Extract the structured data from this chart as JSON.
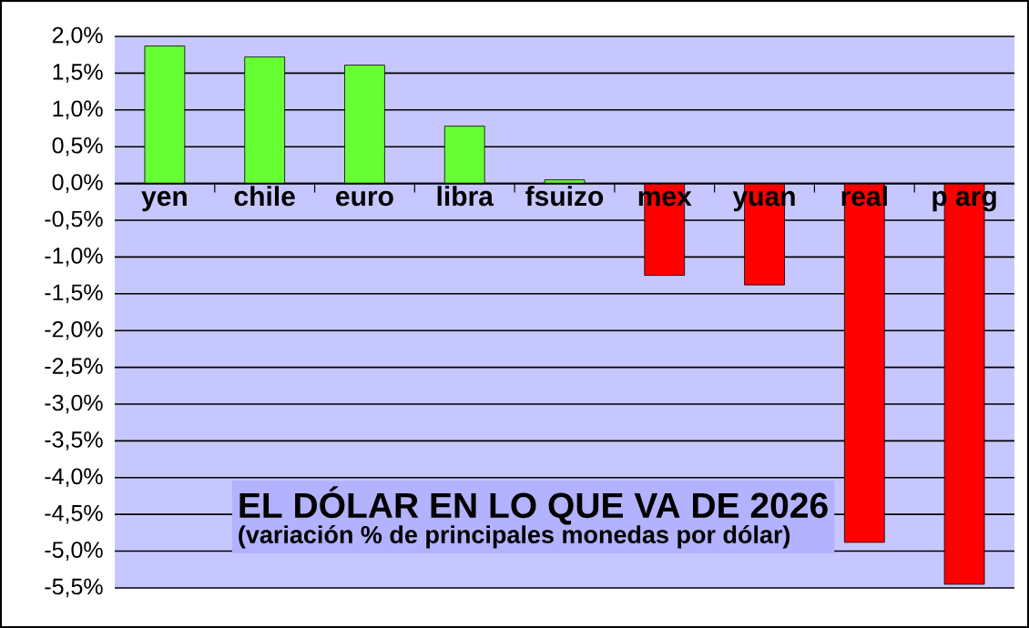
{
  "chart_data": {
    "type": "bar",
    "title": "EL DÓLAR EN LO QUE VA DE 2026",
    "subtitle": "(variación % de principales monedas por dólar)",
    "categories": [
      "yen",
      "chile",
      "euro",
      "libra",
      "fsuizo",
      "mex",
      "yuan",
      "real",
      "p arg"
    ],
    "values": [
      1.87,
      1.72,
      1.61,
      0.78,
      0.05,
      -1.25,
      -1.38,
      -4.88,
      -5.45
    ],
    "colors": [
      "#66ff33",
      "#66ff33",
      "#66ff33",
      "#66ff33",
      "#66ff33",
      "#ff0000",
      "#ff0000",
      "#ff0000",
      "#ff0000"
    ],
    "ylim": [
      -5.5,
      2.0
    ],
    "yticks": [
      {
        "value": -5.5,
        "label": "-5,5%"
      },
      {
        "value": -5.0,
        "label": "-5,0%"
      },
      {
        "value": -4.5,
        "label": "-4,5%"
      },
      {
        "value": -4.0,
        "label": "-4,0%"
      },
      {
        "value": -3.5,
        "label": "-3,5%"
      },
      {
        "value": -3.0,
        "label": "-3,0%"
      },
      {
        "value": -2.5,
        "label": "-2,5%"
      },
      {
        "value": -2.0,
        "label": "-2,0%"
      },
      {
        "value": -1.5,
        "label": "-1,5%"
      },
      {
        "value": -1.0,
        "label": "-1,0%"
      },
      {
        "value": -0.5,
        "label": "-0,5%"
      },
      {
        "value": 0.0,
        "label": "0,0%"
      },
      {
        "value": 0.5,
        "label": "0,5%"
      },
      {
        "value": 1.0,
        "label": "1,0%"
      },
      {
        "value": 1.5,
        "label": "1,5%"
      },
      {
        "value": 2.0,
        "label": "2,0%"
      }
    ],
    "grid": "y"
  }
}
